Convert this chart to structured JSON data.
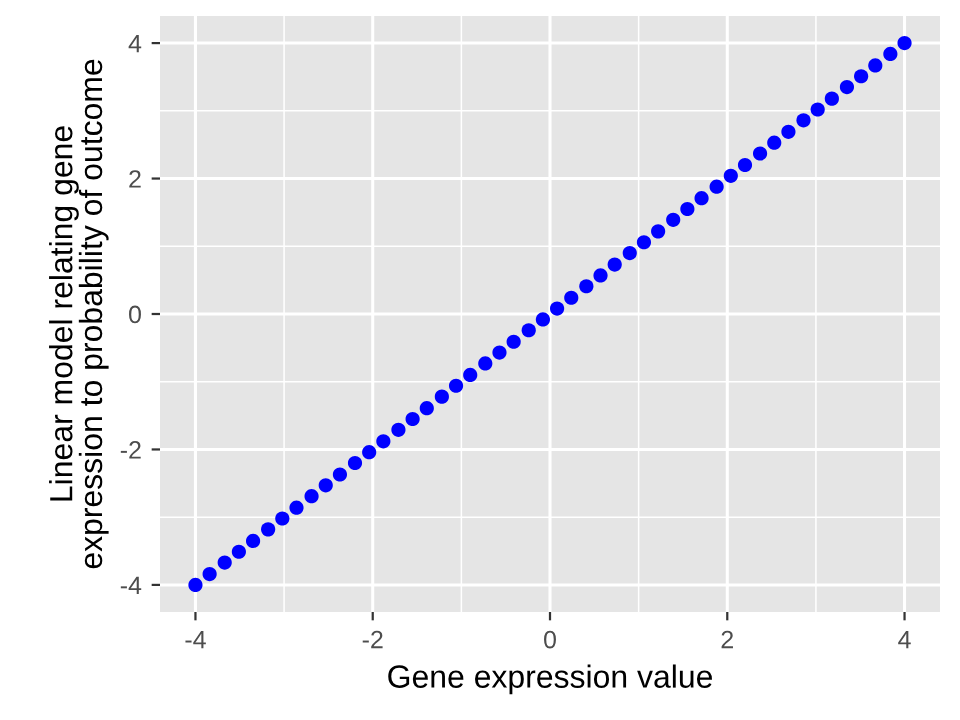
{
  "chart_data": {
    "type": "scatter",
    "xlabel": "Gene expression value",
    "ylabel": "Linear model relating gene\nexpression to probability of outcome",
    "x": [
      -4.0,
      -3.84,
      -3.67,
      -3.51,
      -3.35,
      -3.18,
      -3.02,
      -2.86,
      -2.69,
      -2.53,
      -2.37,
      -2.2,
      -2.04,
      -1.88,
      -1.71,
      -1.55,
      -1.39,
      -1.22,
      -1.06,
      -0.9,
      -0.73,
      -0.57,
      -0.41,
      -0.24,
      -0.08,
      0.08,
      0.24,
      0.41,
      0.57,
      0.73,
      0.9,
      1.06,
      1.22,
      1.39,
      1.55,
      1.71,
      1.88,
      2.04,
      2.2,
      2.37,
      2.53,
      2.69,
      2.86,
      3.02,
      3.18,
      3.35,
      3.51,
      3.67,
      3.84,
      4.0
    ],
    "series": [
      {
        "color": "#0000ff",
        "values": [
          -4.0,
          -3.84,
          -3.67,
          -3.51,
          -3.35,
          -3.18,
          -3.02,
          -2.86,
          -2.69,
          -2.53,
          -2.37,
          -2.2,
          -2.04,
          -1.88,
          -1.71,
          -1.55,
          -1.39,
          -1.22,
          -1.06,
          -0.9,
          -0.73,
          -0.57,
          -0.41,
          -0.24,
          -0.08,
          0.08,
          0.24,
          0.41,
          0.57,
          0.73,
          0.9,
          1.06,
          1.22,
          1.39,
          1.55,
          1.71,
          1.88,
          2.04,
          2.2,
          2.37,
          2.53,
          2.69,
          2.86,
          3.02,
          3.18,
          3.35,
          3.51,
          3.67,
          3.84,
          4.0
        ]
      }
    ],
    "xlim": [
      -4.4,
      4.4
    ],
    "ylim": [
      -4.4,
      4.4
    ],
    "xticks": [
      -4,
      -2,
      0,
      2,
      4
    ],
    "yticks": [
      -4,
      -2,
      0,
      2,
      4
    ],
    "grid": true,
    "marker": "circle"
  }
}
